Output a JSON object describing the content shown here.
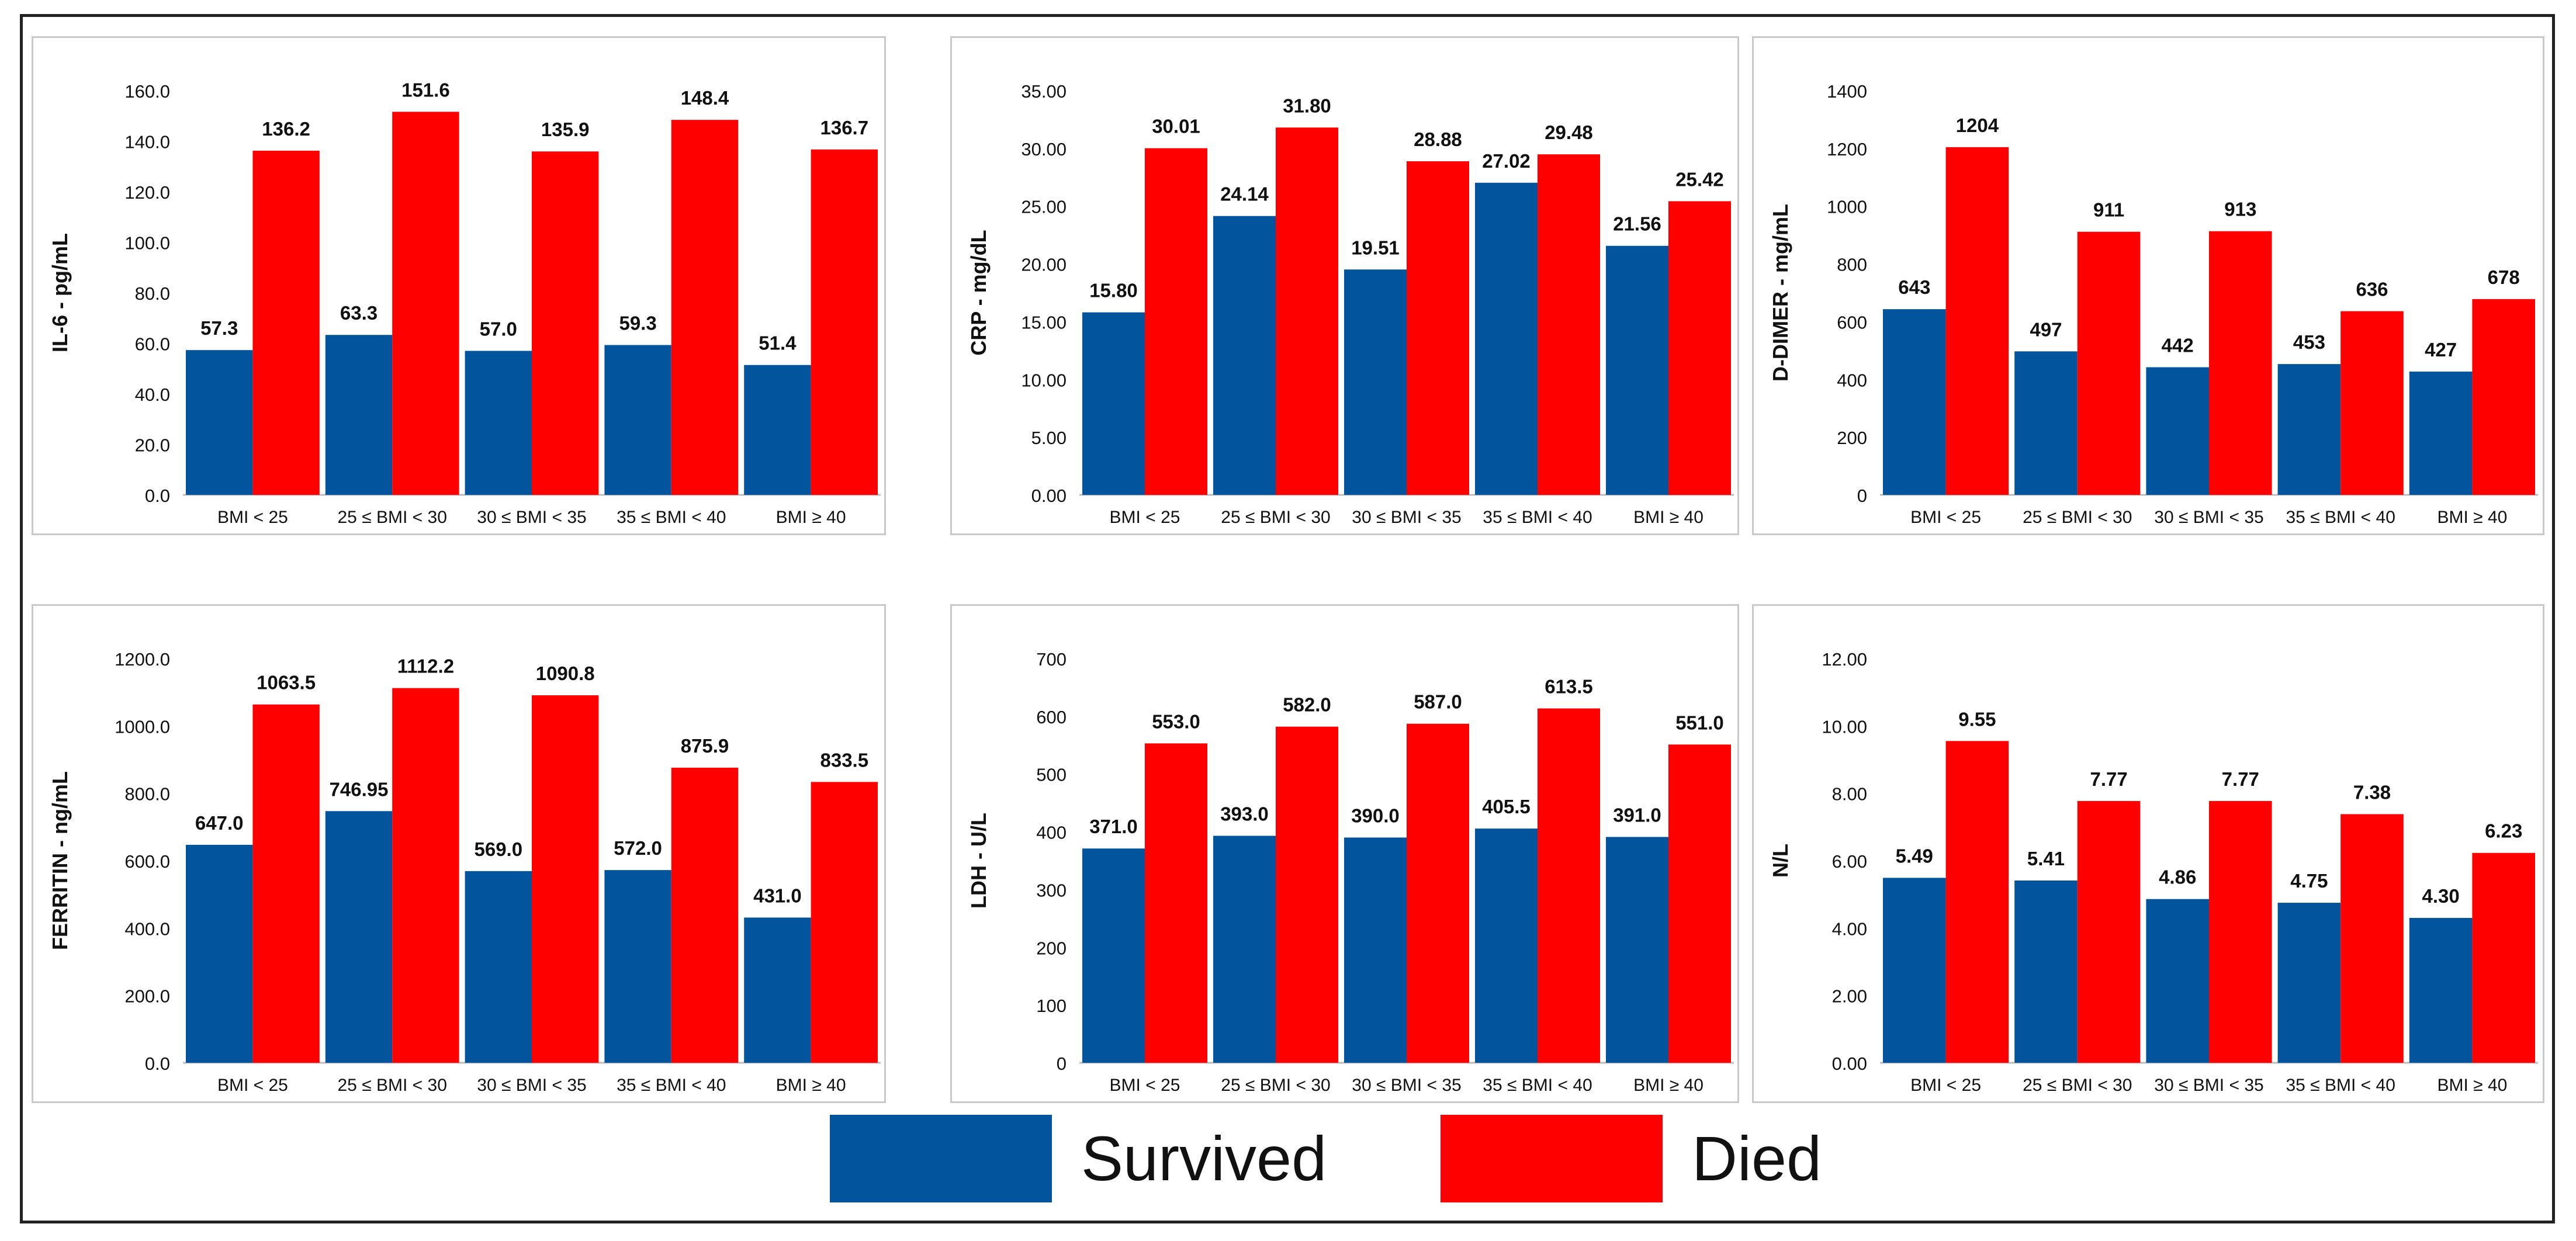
{
  "colors": {
    "survived": "#02559c",
    "died": "#ff0000",
    "axis": "#bdbdbd",
    "text": "#111111"
  },
  "legend": {
    "survived_label": "Survived",
    "died_label": "Died"
  },
  "chart_data": [
    {
      "type": "bar",
      "ylabel": "IL-6 - pg/mL",
      "categories": [
        "BMI < 25",
        "25 ≤ BMI < 30",
        "30 ≤ BMI < 35",
        "35 ≤ BMI < 40",
        "BMI ≥ 40"
      ],
      "yticks": [
        "0.0",
        "20.0",
        "40.0",
        "60.0",
        "80.0",
        "100.0",
        "120.0",
        "140.0",
        "160.0"
      ],
      "ylim": [
        0,
        160
      ],
      "series": [
        {
          "name": "Survived",
          "values": [
            57.3,
            63.3,
            57.0,
            59.3,
            51.4
          ],
          "labels": [
            "57.3",
            "63.3",
            "57.0",
            "59.3",
            "51.4"
          ]
        },
        {
          "name": "Died",
          "values": [
            136.2,
            151.6,
            135.9,
            148.4,
            136.7
          ],
          "labels": [
            "136.2",
            "151.6",
            "135.9",
            "148.4",
            "136.7"
          ]
        }
      ]
    },
    {
      "type": "bar",
      "ylabel": "CRP - mg/dL",
      "categories": [
        "BMI < 25",
        "25 ≤ BMI < 30",
        "30 ≤ BMI < 35",
        "35 ≤ BMI < 40",
        "BMI ≥ 40"
      ],
      "yticks": [
        "0.00",
        "5.00",
        "10.00",
        "15.00",
        "20.00",
        "25.00",
        "30.00",
        "35.00"
      ],
      "ylim": [
        0,
        35
      ],
      "series": [
        {
          "name": "Survived",
          "values": [
            15.8,
            24.14,
            19.51,
            27.02,
            21.56
          ],
          "labels": [
            "15.80",
            "24.14",
            "19.51",
            "27.02",
            "21.56"
          ]
        },
        {
          "name": "Died",
          "values": [
            30.01,
            31.8,
            28.88,
            29.48,
            25.42
          ],
          "labels": [
            "30.01",
            "31.80",
            "28.88",
            "29.48",
            "25.42"
          ]
        }
      ]
    },
    {
      "type": "bar",
      "ylabel": "D-DIMER - mg/mL",
      "categories": [
        "BMI < 25",
        "25 ≤ BMI < 30",
        "30 ≤ BMI < 35",
        "35 ≤ BMI < 40",
        "BMI ≥ 40"
      ],
      "yticks": [
        "0",
        "200",
        "400",
        "600",
        "800",
        "1000",
        "1200",
        "1400"
      ],
      "ylim": [
        0,
        1400
      ],
      "series": [
        {
          "name": "Survived",
          "values": [
            643,
            497,
            442,
            453,
            427
          ],
          "labels": [
            "643",
            "497",
            "442",
            "453",
            "427"
          ]
        },
        {
          "name": "Died",
          "values": [
            1204,
            911,
            913,
            636,
            678
          ],
          "labels": [
            "1204",
            "911",
            "913",
            "636",
            "678"
          ]
        }
      ]
    },
    {
      "type": "bar",
      "ylabel": "FERRITIN - ng/mL",
      "categories": [
        "BMI < 25",
        "25 ≤ BMI < 30",
        "30 ≤ BMI < 35",
        "35 ≤ BMI < 40",
        "BMI ≥ 40"
      ],
      "yticks": [
        "0.0",
        "200.0",
        "400.0",
        "600.0",
        "800.0",
        "1000.0",
        "1200.0"
      ],
      "ylim": [
        0,
        1200
      ],
      "series": [
        {
          "name": "Survived",
          "values": [
            647.0,
            746.95,
            569.0,
            572.0,
            431.0
          ],
          "labels": [
            "647.0",
            "746.95",
            "569.0",
            "572.0",
            "431.0"
          ]
        },
        {
          "name": "Died",
          "values": [
            1063.5,
            1112.2,
            1090.8,
            875.9,
            833.5
          ],
          "labels": [
            "1063.5",
            "1112.2",
            "1090.8",
            "875.9",
            "833.5"
          ]
        }
      ]
    },
    {
      "type": "bar",
      "ylabel": "LDH - U/L",
      "categories": [
        "BMI < 25",
        "25 ≤ BMI < 30",
        "30 ≤ BMI < 35",
        "35 ≤ BMI < 40",
        "BMI ≥ 40"
      ],
      "yticks": [
        "0",
        "100",
        "200",
        "300",
        "400",
        "500",
        "600",
        "700"
      ],
      "ylim": [
        0,
        700
      ],
      "series": [
        {
          "name": "Survived",
          "values": [
            371.0,
            393.0,
            390.0,
            405.5,
            391.0
          ],
          "labels": [
            "371.0",
            "393.0",
            "390.0",
            "405.5",
            "391.0"
          ]
        },
        {
          "name": "Died",
          "values": [
            553.0,
            582.0,
            587.0,
            613.5,
            551.0
          ],
          "labels": [
            "553.0",
            "582.0",
            "587.0",
            "613.5",
            "551.0"
          ]
        }
      ]
    },
    {
      "type": "bar",
      "ylabel": "N/L",
      "categories": [
        "BMI < 25",
        "25 ≤ BMI < 30",
        "30 ≤ BMI < 35",
        "35 ≤ BMI < 40",
        "BMI ≥ 40"
      ],
      "yticks": [
        "0.00",
        "2.00",
        "4.00",
        "6.00",
        "8.00",
        "10.00",
        "12.00"
      ],
      "ylim": [
        0,
        12
      ],
      "series": [
        {
          "name": "Survived",
          "values": [
            5.49,
            5.41,
            4.86,
            4.75,
            4.3
          ],
          "labels": [
            "5.49",
            "5.41",
            "4.86",
            "4.75",
            "4.30"
          ]
        },
        {
          "name": "Died",
          "values": [
            9.55,
            7.77,
            7.77,
            7.38,
            6.23
          ],
          "labels": [
            "9.55",
            "7.77",
            "7.77",
            "7.38",
            "6.23"
          ]
        }
      ]
    }
  ]
}
